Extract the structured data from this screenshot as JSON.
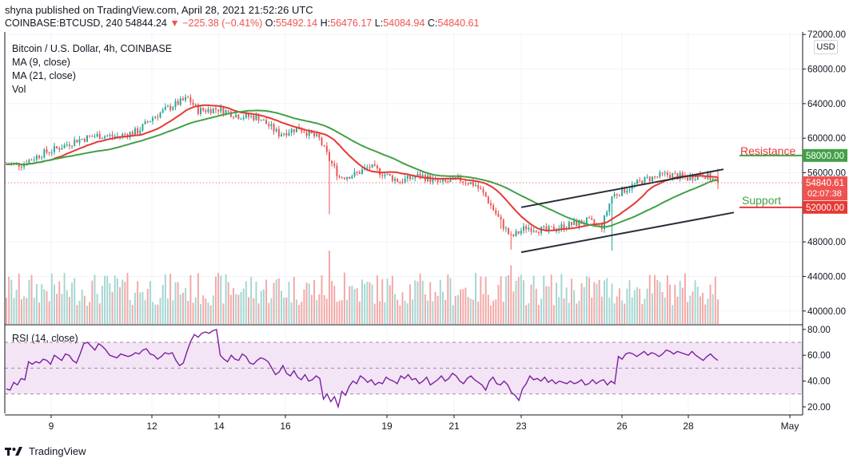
{
  "header": {
    "publisher_line": "shyna published on TradingView.com, April 28, 2021 21:52:26 UTC",
    "symbol": "COINBASE:BTCUSD, 240",
    "last": "54844.24",
    "change": "−225.38 (−0.41%)",
    "o_label": "O:",
    "o": "55492.14",
    "h_label": "H:",
    "h": "56476.17",
    "l_label": "L:",
    "l": "54084.94",
    "c_label": "C:",
    "c": "54840.61"
  },
  "legend": {
    "title": "Bitcoin / U.S. Dollar, 4h, COINBASE",
    "ma9": "MA (9, close)",
    "ma21": "MA (21, close)",
    "vol": "Vol"
  },
  "currency": "USD",
  "footer": {
    "brand": "TradingView"
  },
  "colors": {
    "up": "#26a69a",
    "down": "#ef5350",
    "ma9": "#e53935",
    "ma21": "#43a047",
    "rsi": "#7b1fa2",
    "rsi_band": "#f3e5f5",
    "trendline": "#2a2e39"
  },
  "chart_data": [
    {
      "type": "candlestick",
      "title": "Bitcoin / U.S. Dollar, 4h, COINBASE",
      "x_tick_labels": [
        "9",
        "12",
        "14",
        "16",
        "19",
        "21",
        "23",
        "26",
        "28",
        "May"
      ],
      "y_ticks": [
        "72000.00",
        "68000.00",
        "64000.00",
        "60000.00",
        "56000.00",
        "48000.00",
        "44000.00",
        "40000.00"
      ],
      "ylim": [
        38500,
        72300
      ],
      "last_price_label": "54840.61",
      "countdown_label": "02:07:38",
      "annotations": [
        {
          "text": "Resistance",
          "price_label": "58000.00",
          "price": 58000
        },
        {
          "text": "Support",
          "price_label": "52000.00",
          "price": 52000
        }
      ],
      "trend_channel": {
        "upper": [
          [
            "Apr 22 21:00",
            52000
          ],
          [
            "Apr 29 06:00",
            56400
          ]
        ],
        "lower": [
          [
            "Apr 22 21:00",
            46800
          ],
          [
            "Apr 29 09:00",
            51400
          ]
        ]
      },
      "key_levels": {
        "high": 64800,
        "low": 47000,
        "close": 54840.61
      },
      "series": [
        {
          "name": "MA (9, close)",
          "color": "#e53935"
        },
        {
          "name": "MA (21, close)",
          "color": "#43a047"
        },
        {
          "name": "Vol"
        }
      ]
    },
    {
      "type": "line",
      "title": "RSI (14, close)",
      "y_ticks": [
        "80.00",
        "60.00",
        "40.00",
        "20.00"
      ],
      "ylim": [
        15,
        83
      ],
      "band": [
        30,
        70
      ],
      "values": [
        34,
        33,
        39,
        37,
        42,
        41,
        55,
        53,
        55,
        54,
        57,
        56,
        53,
        60,
        58,
        56,
        61,
        60,
        56,
        54,
        61,
        69,
        70,
        67,
        64,
        69,
        67,
        64,
        60,
        59,
        58,
        61,
        60,
        59,
        60,
        62,
        61,
        64,
        65,
        61,
        60,
        57,
        59,
        62,
        61,
        62,
        56,
        52,
        54,
        63,
        71,
        76,
        74,
        77,
        78,
        77,
        79,
        80,
        60,
        57,
        55,
        60,
        57,
        56,
        61,
        59,
        54,
        53,
        56,
        58,
        57,
        55,
        50,
        45,
        47,
        52,
        46,
        44,
        48,
        43,
        41,
        45,
        40,
        41,
        44,
        42,
        26,
        30,
        24,
        28,
        20,
        32,
        29,
        36,
        40,
        38,
        44,
        42,
        39,
        41,
        37,
        39,
        38,
        43,
        41,
        40,
        38,
        44,
        42,
        45,
        41,
        42,
        38,
        40,
        43,
        37,
        39,
        41,
        44,
        40,
        42,
        46,
        44,
        40,
        38,
        42,
        44,
        41,
        39,
        37,
        33,
        40,
        43,
        38,
        37,
        40,
        37,
        31,
        29,
        25,
        34,
        38,
        44,
        41,
        42,
        40,
        43,
        39,
        41,
        38,
        40,
        39,
        38,
        40,
        38,
        39,
        41,
        37,
        38,
        41,
        38,
        40,
        41,
        37,
        40,
        38,
        59,
        57,
        61,
        62,
        61,
        59,
        61,
        63,
        60,
        62,
        61,
        59,
        61,
        64,
        63,
        61,
        63,
        62,
        61,
        60,
        63,
        60,
        58,
        56,
        59,
        61,
        58,
        56
      ]
    }
  ]
}
